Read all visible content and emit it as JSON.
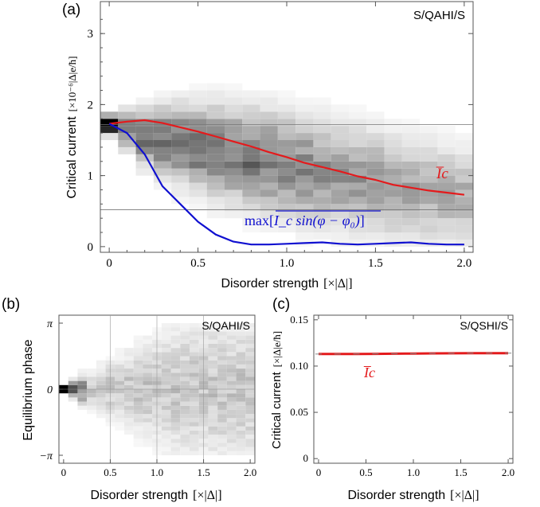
{
  "chart_data": [
    {
      "panel": "(a)",
      "type": "heatmap",
      "inset_label": "S/QAHI/S",
      "xlabel": "Disorder strength",
      "xlabel_unit": "[×|Δ|]",
      "ylabel": "Critical current",
      "ylabel_unit": "[×10⁻⁶|Δ|e/ħ]",
      "xlim": [
        -0.05,
        2.05
      ],
      "ylim": [
        -0.08,
        3.45
      ],
      "xticks": [
        "0",
        "0.5",
        "1.0",
        "1.5",
        "2.0"
      ],
      "yticks": [
        "0",
        "1",
        "2",
        "3"
      ],
      "reference_lines_y": [
        1.72,
        0.52
      ],
      "heatmap_x_bins": [
        0,
        0.1,
        0.2,
        0.3,
        0.4,
        0.5,
        0.6,
        0.7,
        0.8,
        0.9,
        1.0,
        1.1,
        1.2,
        1.3,
        1.4,
        1.5,
        1.6,
        1.7,
        1.8,
        1.9,
        2.0
      ],
      "heatmap_center_y": [
        1.72,
        1.65,
        1.55,
        1.5,
        1.45,
        1.4,
        1.35,
        1.3,
        1.25,
        1.2,
        1.15,
        1.1,
        1.05,
        1.0,
        0.95,
        0.9,
        0.85,
        0.8,
        0.78,
        0.75,
        0.72
      ],
      "heatmap_spread_y": [
        0.12,
        0.25,
        0.35,
        0.45,
        0.5,
        0.55,
        0.58,
        0.6,
        0.62,
        0.63,
        0.64,
        0.65,
        0.65,
        0.65,
        0.65,
        0.65,
        0.65,
        0.64,
        0.63,
        0.62,
        0.6
      ],
      "series": [
        {
          "name": "Ī_c",
          "color": "#e41a1c",
          "x": [
            0,
            0.1,
            0.2,
            0.3,
            0.4,
            0.5,
            0.6,
            0.7,
            0.8,
            0.9,
            1.0,
            1.1,
            1.2,
            1.3,
            1.4,
            1.5,
            1.6,
            1.7,
            1.8,
            1.9,
            2.0
          ],
          "y": [
            1.73,
            1.76,
            1.78,
            1.74,
            1.68,
            1.62,
            1.55,
            1.48,
            1.41,
            1.33,
            1.26,
            1.18,
            1.12,
            1.06,
            0.99,
            0.94,
            0.87,
            0.83,
            0.79,
            0.76,
            0.73
          ]
        },
        {
          "name": "max[I_c sin(φ − φ₀)]",
          "color": "#1010d0",
          "x": [
            0,
            0.1,
            0.2,
            0.3,
            0.4,
            0.5,
            0.6,
            0.7,
            0.8,
            0.9,
            1.0,
            1.1,
            1.2,
            1.3,
            1.4,
            1.5,
            1.6,
            1.7,
            1.8,
            1.9,
            2.0
          ],
          "y": [
            1.73,
            1.6,
            1.3,
            0.85,
            0.6,
            0.35,
            0.17,
            0.07,
            0.03,
            0.03,
            0.04,
            0.05,
            0.06,
            0.04,
            0.03,
            0.04,
            0.05,
            0.06,
            0.04,
            0.03,
            0.03
          ]
        }
      ],
      "annotations": {
        "ic_label": "I̅c",
        "max_label_prefix": "max[",
        "max_label_overlined": "I_c sin(φ − φ₀)",
        "max_label_suffix": "]"
      }
    },
    {
      "panel": "(b)",
      "type": "heatmap",
      "inset_label": "S/QAHI/S",
      "xlabel": "Disorder strength",
      "xlabel_unit": "[×|Δ|]",
      "ylabel": "Equilibrium phase",
      "xlim": [
        -0.05,
        2.05
      ],
      "yticks": [
        "π",
        "0",
        "−π"
      ],
      "xticks": [
        "0",
        "0.5",
        "1.0",
        "1.5",
        "2.0"
      ]
    },
    {
      "panel": "(c)",
      "type": "line",
      "inset_label": "S/QSHI/S",
      "xlabel": "Disorder strength",
      "xlabel_unit": "[×|Δ|]",
      "ylabel": "Critical current",
      "ylabel_unit": "[×|Δ|e/ħ]",
      "xlim": [
        -0.05,
        2.05
      ],
      "ylim": [
        -0.005,
        0.155
      ],
      "xticks": [
        "0",
        "0.5",
        "1.0",
        "1.5",
        "2.0"
      ],
      "yticks": [
        "0",
        "0.05",
        "0.10",
        "0.15"
      ],
      "series": [
        {
          "name": "Ī_c",
          "color": "#e41a1c",
          "x": [
            0,
            0.2,
            0.4,
            0.6,
            0.8,
            1.0,
            1.2,
            1.4,
            1.6,
            1.8,
            2.0
          ],
          "y": [
            0.113,
            0.113,
            0.1131,
            0.1132,
            0.1134,
            0.1135,
            0.1137,
            0.1138,
            0.114,
            0.114,
            0.114
          ]
        }
      ],
      "annotations": {
        "ic_label": "I̅c"
      }
    }
  ]
}
